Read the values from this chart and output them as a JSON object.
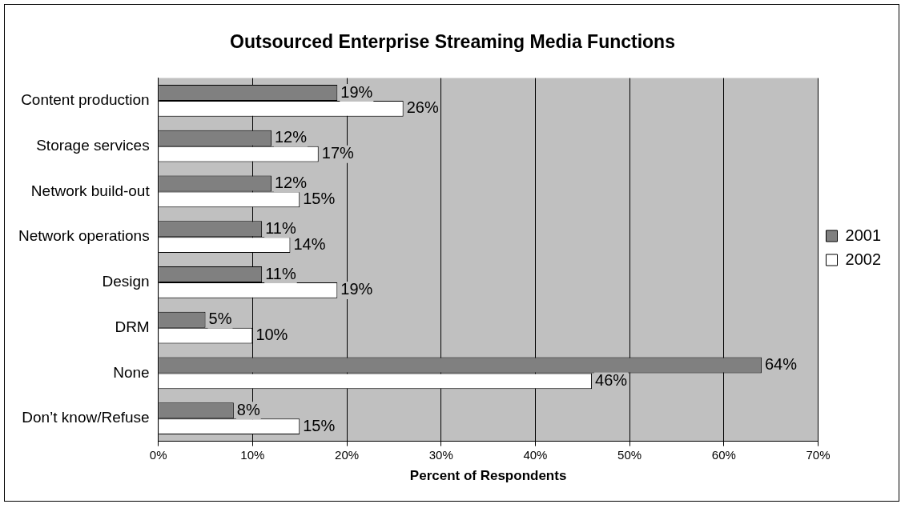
{
  "chart_data": {
    "type": "bar",
    "orientation": "horizontal",
    "title": "Outsourced Enterprise Streaming Media Functions",
    "xlabel": "Percent of Respondents",
    "categories": [
      "Content production",
      "Storage services",
      "Network build-out",
      "Network operations",
      "Design",
      "DRM",
      "None",
      "Don’t know/Refuse"
    ],
    "series": [
      {
        "name": "2001",
        "color": "#808080",
        "values": [
          19,
          12,
          12,
          11,
          11,
          5,
          64,
          8
        ],
        "value_labels": [
          "19%",
          "12%",
          "12%",
          "11%",
          "11%",
          "5%",
          "64%",
          "8%"
        ]
      },
      {
        "name": "2002",
        "color": "#ffffff",
        "values": [
          26,
          17,
          15,
          14,
          19,
          10,
          46,
          15
        ],
        "value_labels": [
          "26%",
          "17%",
          "15%",
          "14%",
          "19%",
          "10%",
          "46%",
          "15%"
        ]
      }
    ],
    "xlim": [
      0,
      70
    ],
    "xticks": [
      {
        "value": 0,
        "label": "0%"
      },
      {
        "value": 10,
        "label": "10%"
      },
      {
        "value": 20,
        "label": "20%"
      },
      {
        "value": 30,
        "label": "30%"
      },
      {
        "value": 40,
        "label": "40%"
      },
      {
        "value": 50,
        "label": "50%"
      },
      {
        "value": 60,
        "label": "60%"
      },
      {
        "value": 70,
        "label": "70%"
      }
    ],
    "grid": "x",
    "legend": "right"
  }
}
